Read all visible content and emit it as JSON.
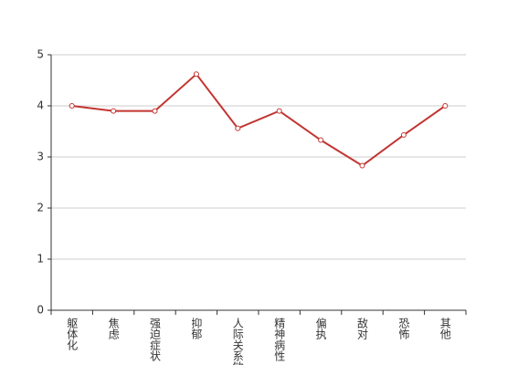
{
  "chart_data": {
    "type": "line",
    "categories": [
      "躯体化",
      "焦虑",
      "强迫症状",
      "抑郁",
      "人际关系敏感",
      "精神病性",
      "偏执",
      "敌对",
      "恐怖",
      "其他"
    ],
    "values": [
      4.0,
      3.9,
      3.9,
      4.62,
      3.56,
      3.9,
      3.33,
      2.83,
      3.43,
      4.0
    ],
    "color": "#c23531",
    "ylim": [
      0,
      5
    ],
    "yticks": [
      0,
      1,
      2,
      3,
      4,
      5
    ],
    "grid": true
  }
}
